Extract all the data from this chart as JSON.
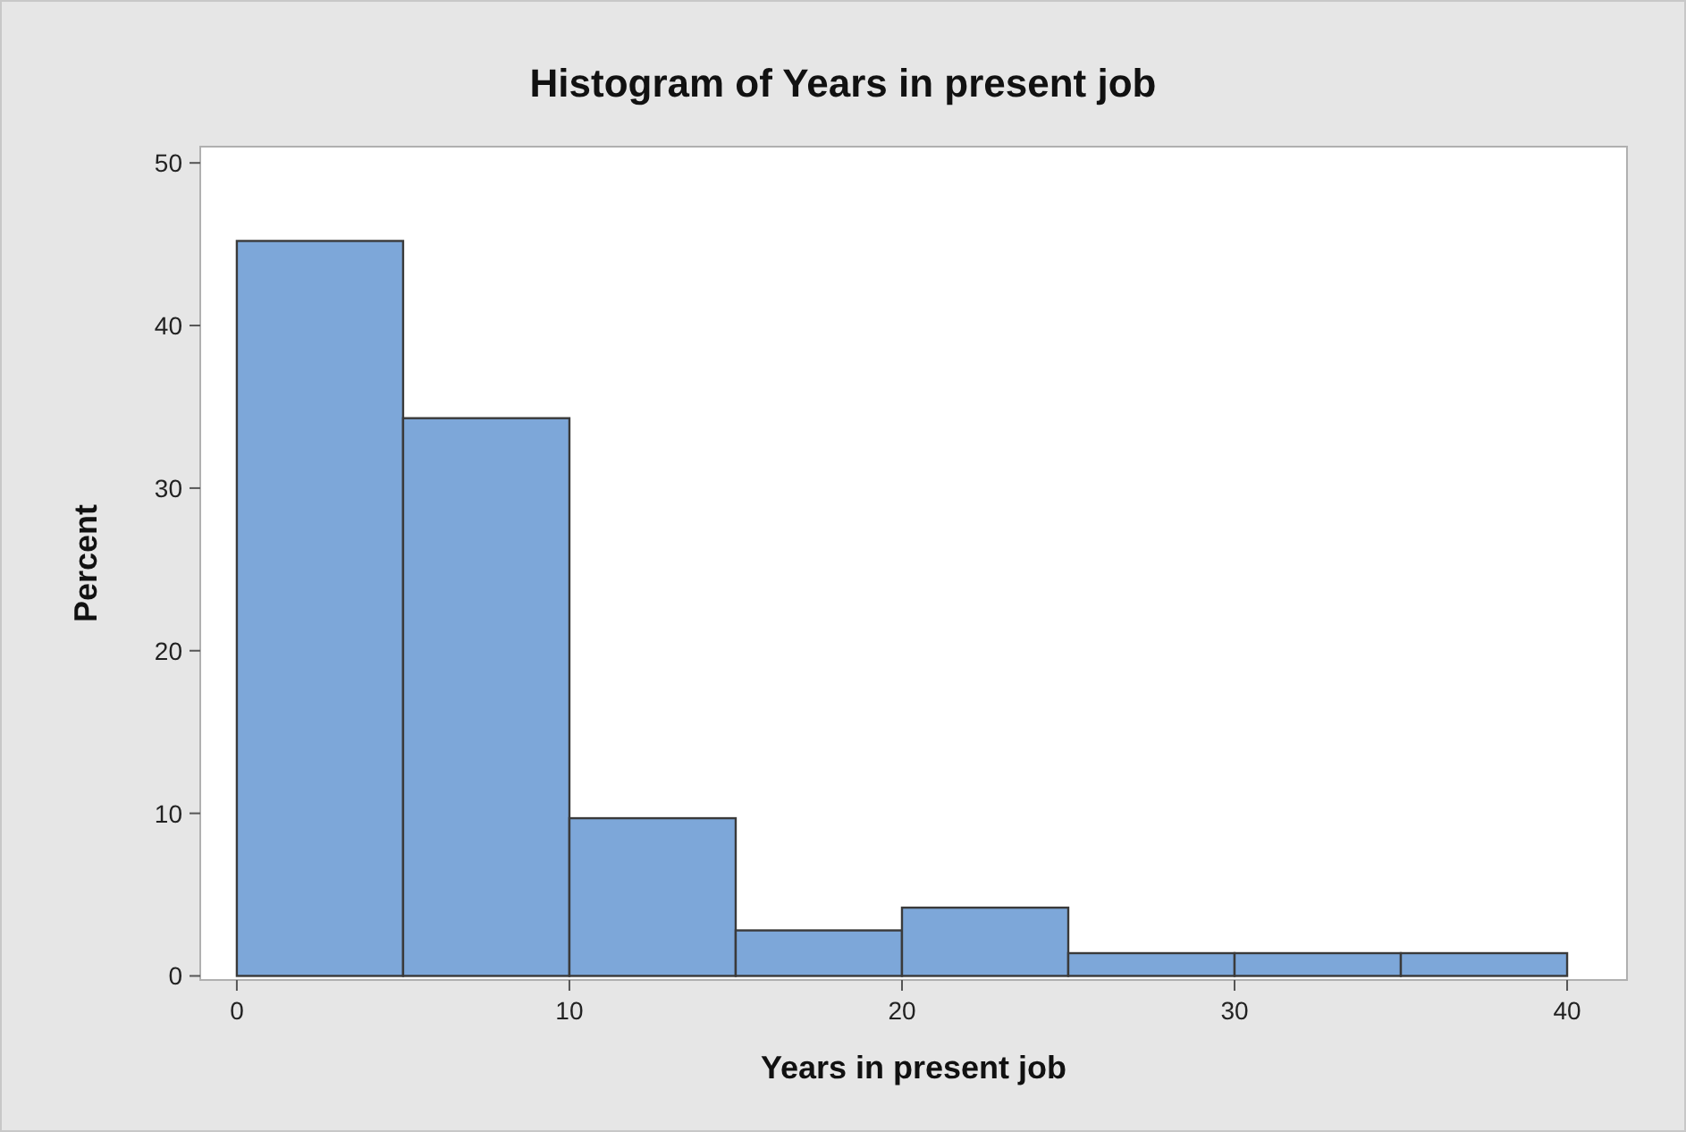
{
  "chart_data": {
    "type": "histogram",
    "title": "Histogram of Years in present job",
    "xlabel": "Years in present job",
    "ylabel": "Percent",
    "bins": [
      0,
      5,
      10,
      15,
      20,
      25,
      30,
      35,
      40
    ],
    "values": [
      45.2,
      34.3,
      9.7,
      2.8,
      4.2,
      1.4,
      1.4,
      1.4
    ],
    "color": "#7da7d9",
    "xlim": [
      -1.1,
      41.8
    ],
    "xticks": [
      0,
      10,
      20,
      30,
      40
    ],
    "ylim": [
      -0.25,
      51
    ],
    "yticks": [
      0,
      10,
      20,
      30,
      40,
      50
    ],
    "grid": false
  }
}
